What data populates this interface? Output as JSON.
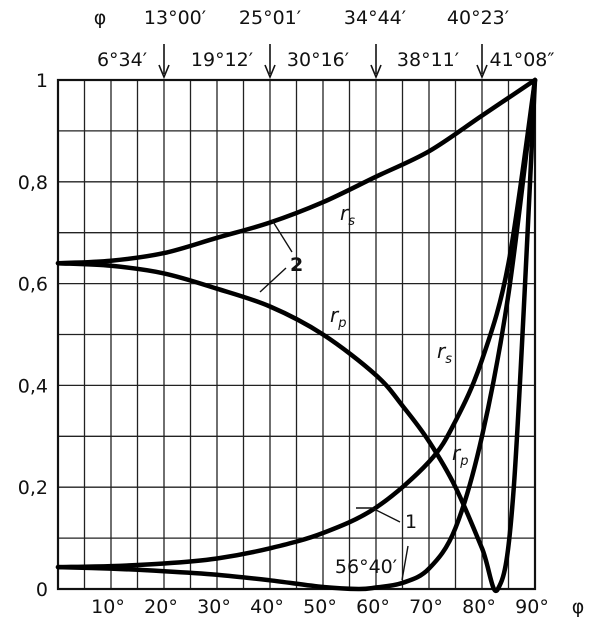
{
  "chart_data": {
    "type": "line",
    "xlabel": "φ",
    "ylabel": "",
    "xlim": [
      0,
      90
    ],
    "ylim": [
      0,
      1
    ],
    "grid": true,
    "x_tick_labels": [
      "10°",
      "20°",
      "30°",
      "40°",
      "50°",
      "60°",
      "70°",
      "80°",
      "90°"
    ],
    "x_tick_values": [
      10,
      20,
      30,
      40,
      50,
      60,
      70,
      80,
      90
    ],
    "y_tick_labels": [
      "0",
      "0,2",
      "0,4",
      "0,6",
      "0,8",
      "1"
    ],
    "y_tick_values": [
      0,
      0.2,
      0.4,
      0.6,
      0.8,
      1
    ],
    "top_axis": {
      "symbol": "φ",
      "upper_labels": [
        "13°00′",
        "25°01′",
        "34°44′",
        "40°23′"
      ],
      "lower_labels": [
        "6°34′",
        "19°12′",
        "30°16′",
        "38°11′",
        "41°08″"
      ],
      "arrow_x": [
        20,
        40,
        60,
        80
      ]
    },
    "series": [
      {
        "label": "r_s",
        "group": "2",
        "x": [
          0,
          10,
          20,
          30,
          40,
          50,
          60,
          70,
          80,
          90
        ],
        "y": [
          0.64,
          0.645,
          0.66,
          0.69,
          0.72,
          0.76,
          0.81,
          0.86,
          0.93,
          1.0
        ]
      },
      {
        "label": "r_p",
        "group": "2",
        "x": [
          0,
          10,
          20,
          30,
          40,
          50,
          60,
          65,
          70,
          75,
          80,
          83,
          86,
          90
        ],
        "y": [
          0.64,
          0.635,
          0.62,
          0.59,
          0.555,
          0.5,
          0.42,
          0.36,
          0.29,
          0.2,
          0.08,
          0.0,
          0.2,
          1.0
        ]
      },
      {
        "label": "r_s",
        "group": "1",
        "x": [
          0,
          10,
          20,
          30,
          40,
          50,
          60,
          70,
          75,
          80,
          85,
          90
        ],
        "y": [
          0.043,
          0.045,
          0.05,
          0.06,
          0.08,
          0.11,
          0.16,
          0.25,
          0.33,
          0.45,
          0.64,
          1.0
        ]
      },
      {
        "label": "r_p",
        "group": "1",
        "x": [
          0,
          10,
          20,
          30,
          40,
          50,
          56.67,
          60,
          65,
          70,
          75,
          80,
          85,
          90
        ],
        "y": [
          0.043,
          0.04,
          0.035,
          0.028,
          0.017,
          0.004,
          0.0,
          0.003,
          0.012,
          0.04,
          0.12,
          0.3,
          0.58,
          1.0
        ]
      }
    ],
    "annotations": [
      {
        "text": "1",
        "x": 68,
        "y": 0.13
      },
      {
        "text": "2",
        "x": 45,
        "y": 0.63
      },
      {
        "text": "56°40′",
        "x": 56.67,
        "y": 0.02
      }
    ]
  }
}
